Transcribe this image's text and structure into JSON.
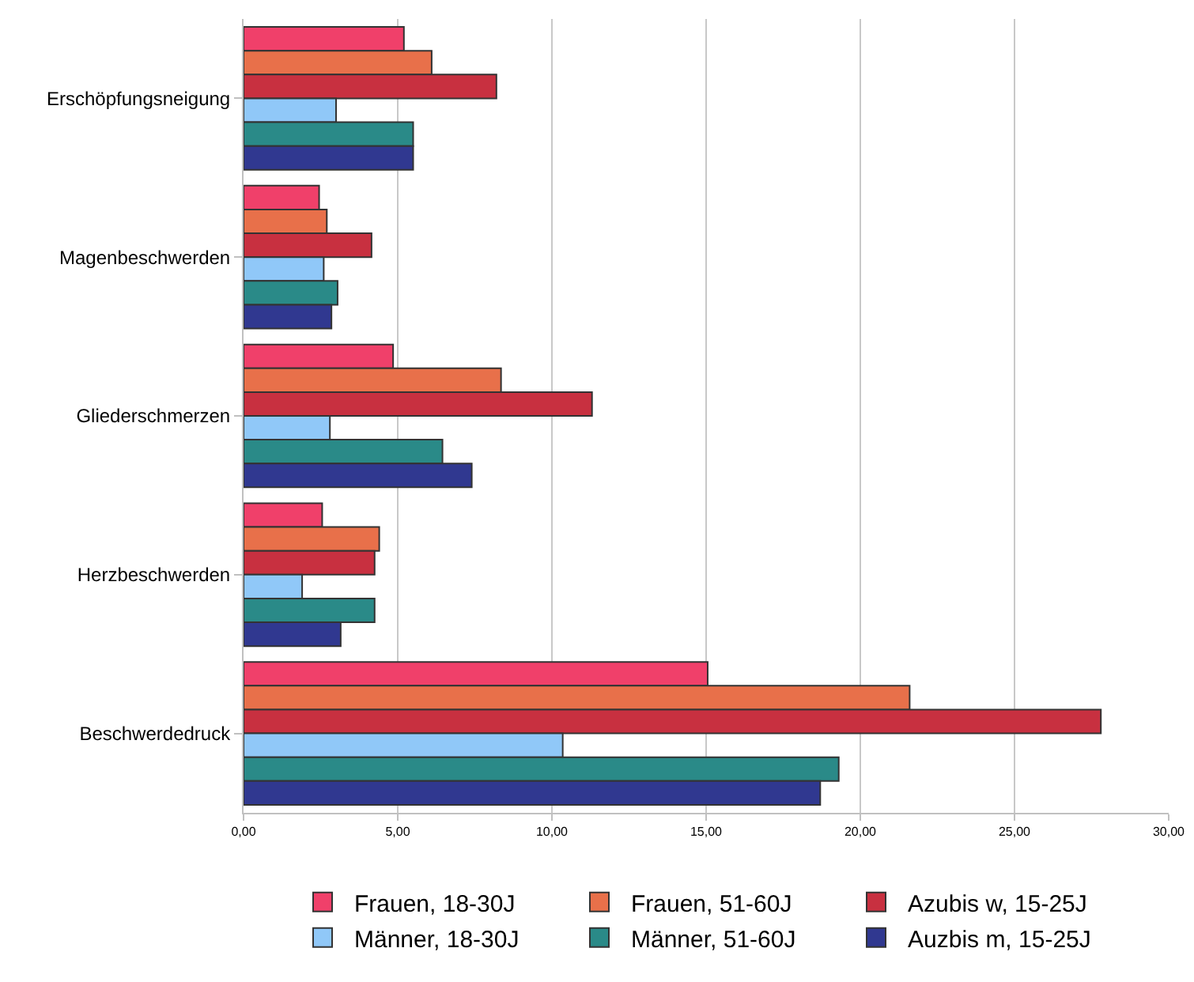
{
  "chart_data": {
    "type": "bar",
    "orientation": "horizontal",
    "categories": [
      "Erschöpfungsneigung",
      "Magenbeschwerden",
      "Gliederschmerzen",
      "Herzbeschwerden",
      "Beschwerdedruck"
    ],
    "series": [
      {
        "name": "Frauen, 18-30J",
        "color": "#f0406a",
        "values": [
          5.2,
          2.45,
          4.85,
          2.55,
          15.05
        ]
      },
      {
        "name": "Frauen, 51-60J",
        "color": "#e8704a",
        "values": [
          6.1,
          2.7,
          8.35,
          4.4,
          21.6
        ]
      },
      {
        "name": "Azubis w, 15-25J",
        "color": "#c83040",
        "values": [
          8.2,
          4.15,
          11.3,
          4.25,
          27.8
        ]
      },
      {
        "name": "Männer, 18-30J",
        "color": "#90c8f8",
        "values": [
          3.0,
          2.6,
          2.8,
          1.9,
          10.35
        ]
      },
      {
        "name": "Männer, 51-60J",
        "color": "#2a8a88",
        "values": [
          5.5,
          3.05,
          6.45,
          4.25,
          19.3
        ]
      },
      {
        "name": "Auzbis m, 15-25J",
        "color": "#303890",
        "values": [
          5.5,
          2.85,
          7.4,
          3.15,
          18.7
        ]
      }
    ],
    "xlim": [
      0,
      30
    ],
    "xticks": [
      {
        "value": 0,
        "label": "0,00"
      },
      {
        "value": 5,
        "label": "5,00"
      },
      {
        "value": 10,
        "label": "10,00"
      },
      {
        "value": 15,
        "label": "15,00"
      },
      {
        "value": 20,
        "label": "20,00"
      },
      {
        "value": 25,
        "label": "25,00"
      },
      {
        "value": 30,
        "label": "30,00"
      }
    ],
    "grid": "x",
    "legend": "bottom"
  }
}
